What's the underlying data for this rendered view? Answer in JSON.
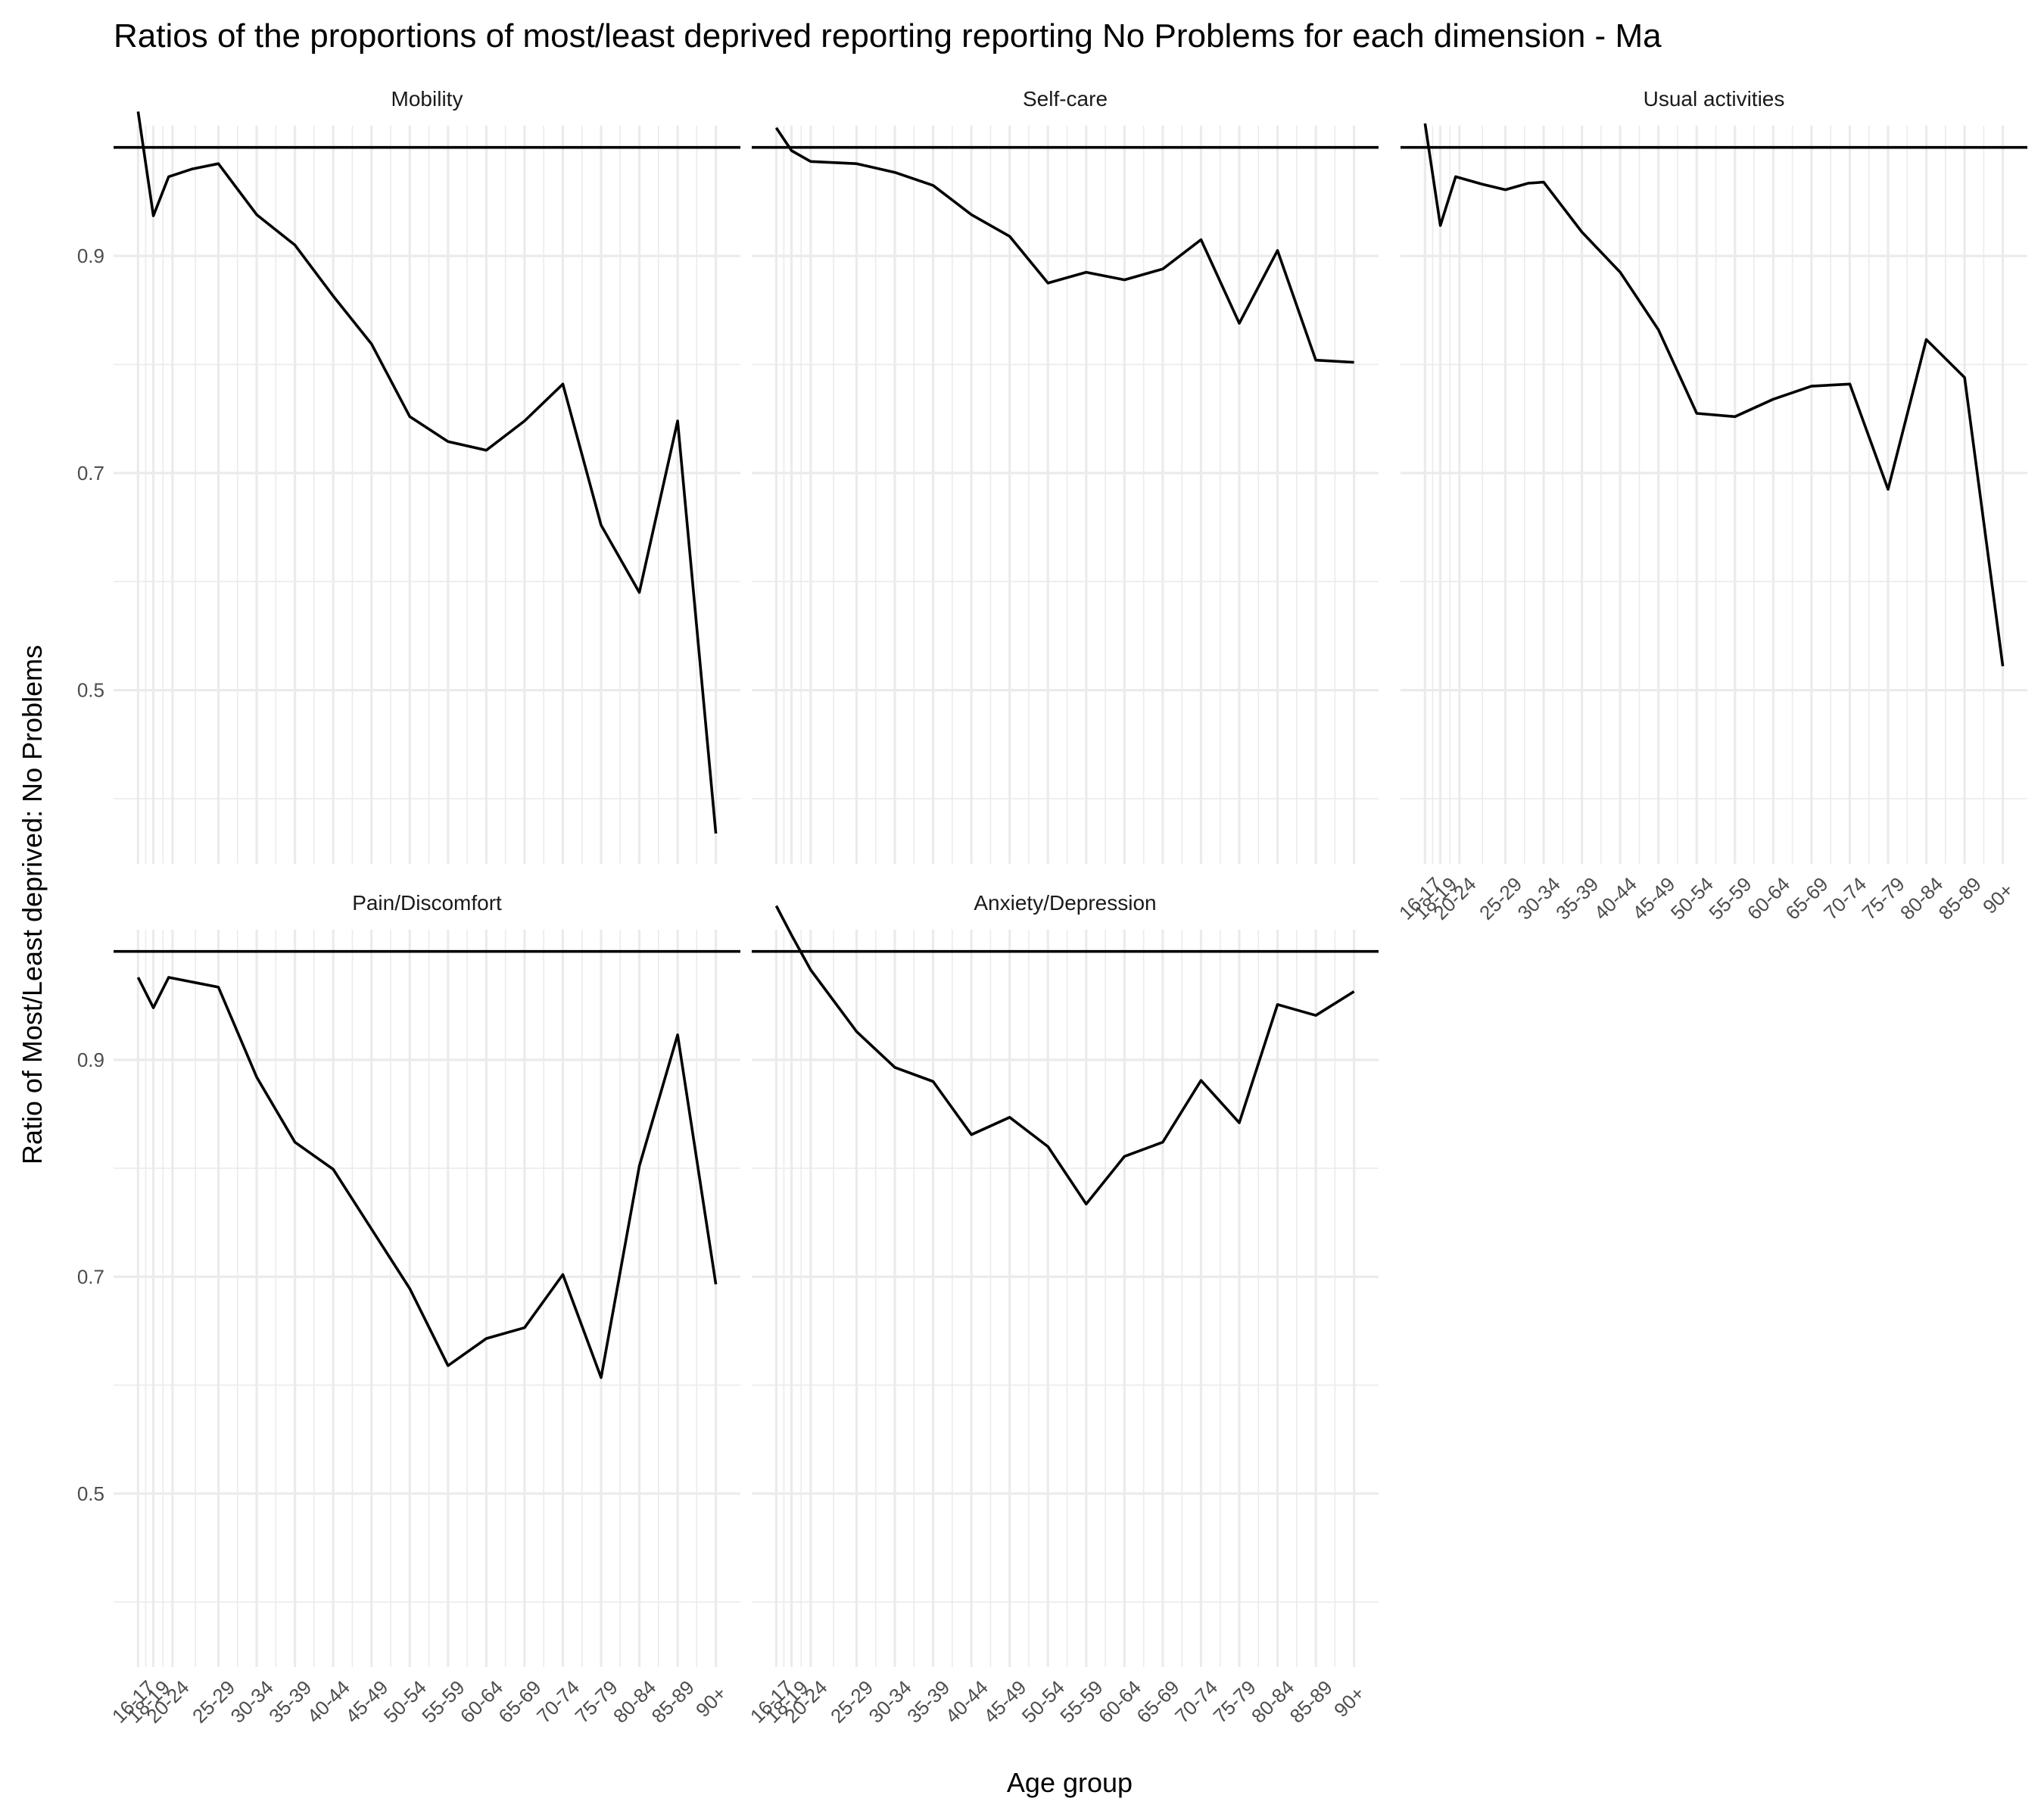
{
  "chart_data": {
    "type": "line",
    "title": "Ratios of the proportions of most/least deprived reporting reporting No Problems for each dimension - Ma",
    "xlabel": "Age group",
    "ylabel": "Ratio of Most/Least deprived: No Problems",
    "x_positions": [
      16.5,
      18.5,
      21,
      27,
      32,
      37,
      42,
      47,
      52,
      57,
      62,
      67,
      72,
      77,
      82,
      87,
      92
    ],
    "x_tick_labels": [
      "16-17",
      "18-19",
      "20-24",
      "25-29",
      "30-34",
      "35-39",
      "40-44",
      "45-49",
      "50-54",
      "55-59",
      "60-64",
      "65-69",
      "70-74",
      "75-79",
      "80-84",
      "85-89",
      "90+"
    ],
    "y_ticks": [
      0.5,
      0.7,
      0.9
    ],
    "y_tick_labels": [
      "0.5",
      "0.7",
      "0.9"
    ],
    "ylim": [
      0.34,
      1.02
    ],
    "xlim": [
      13.3,
      95.2
    ],
    "reference_y": 1.0,
    "panels": [
      {
        "name": "Mobility",
        "x": [
          16.5,
          18.5,
          20.5,
          23.5,
          27,
          32,
          37,
          42,
          47,
          52,
          57,
          62,
          67,
          72,
          77,
          82,
          87,
          92
        ],
        "y": [
          1.033,
          0.937,
          0.973,
          0.98,
          0.985,
          0.938,
          0.91,
          0.863,
          0.819,
          0.752,
          0.729,
          0.721,
          0.748,
          0.782,
          0.652,
          0.59,
          0.748,
          0.368
        ]
      },
      {
        "name": "Self-care",
        "x": [
          16.5,
          18.5,
          21,
          27,
          32,
          37,
          42,
          47,
          52,
          57,
          62,
          67,
          72,
          77,
          82,
          87,
          92
        ],
        "y": [
          1.018,
          0.997,
          0.987,
          0.985,
          0.977,
          0.965,
          0.938,
          0.918,
          0.875,
          0.885,
          0.878,
          0.888,
          0.915,
          0.838,
          0.905,
          0.804,
          0.802
        ]
      },
      {
        "name": "Usual activities",
        "x": [
          16.5,
          18.5,
          20.5,
          24,
          27,
          30,
          32,
          37,
          42,
          47,
          52,
          57,
          62,
          67,
          72,
          77,
          82,
          87,
          92
        ],
        "y": [
          1.022,
          0.928,
          0.973,
          0.966,
          0.961,
          0.967,
          0.968,
          0.922,
          0.885,
          0.832,
          0.755,
          0.752,
          0.768,
          0.78,
          0.782,
          0.685,
          0.823,
          0.788,
          0.522
        ]
      },
      {
        "name": "Pain/Discomfort",
        "x": [
          16.5,
          18.5,
          20.5,
          27,
          32,
          37,
          42,
          47,
          52,
          57,
          62,
          67,
          72,
          77,
          82,
          87,
          92
        ],
        "y": [
          0.976,
          0.948,
          0.976,
          0.967,
          0.884,
          0.824,
          0.799,
          0.744,
          0.689,
          0.618,
          0.643,
          0.653,
          0.702,
          0.607,
          0.802,
          0.923,
          0.693
        ]
      },
      {
        "name": "Anxiety/Depression",
        "x": [
          16.5,
          18.5,
          21,
          27,
          32,
          37,
          42,
          47,
          52,
          57,
          62,
          67,
          72,
          77,
          82,
          87,
          92
        ],
        "y": [
          1.042,
          1.015,
          0.983,
          0.926,
          0.893,
          0.88,
          0.831,
          0.847,
          0.82,
          0.767,
          0.811,
          0.824,
          0.881,
          0.842,
          0.951,
          0.941,
          0.963
        ]
      }
    ]
  }
}
